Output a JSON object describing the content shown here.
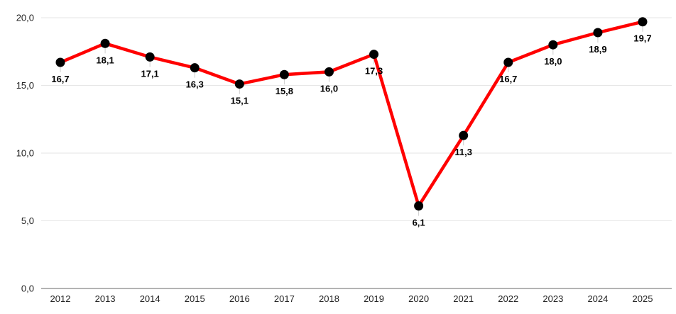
{
  "chart_data": {
    "type": "line",
    "categories": [
      "2012",
      "2013",
      "2014",
      "2015",
      "2016",
      "2017",
      "2018",
      "2019",
      "2020",
      "2021",
      "2022",
      "2023",
      "2024",
      "2025"
    ],
    "series": [
      {
        "name": "series-1",
        "values": [
          16.7,
          18.1,
          17.1,
          16.3,
          15.1,
          15.8,
          16.0,
          17.3,
          6.1,
          11.3,
          16.7,
          18.0,
          18.9,
          19.7
        ],
        "point_labels": [
          "16,7",
          "18,1",
          "17,1",
          "16,3",
          "15,1",
          "15,8",
          "16,0",
          "17,3",
          "6,1",
          "11,3",
          "16,7",
          "18,0",
          "18,9",
          "19,7"
        ]
      }
    ],
    "y_ticks": [
      {
        "value": 0,
        "label": "0,0"
      },
      {
        "value": 5,
        "label": "5,0"
      },
      {
        "value": 10,
        "label": "10,0"
      },
      {
        "value": 15,
        "label": "15,0"
      },
      {
        "value": 20,
        "label": "20,0"
      }
    ],
    "ylim": [
      0,
      20
    ],
    "xlabel": "",
    "ylabel": "",
    "grid": true,
    "legend_position": "none",
    "colors": {
      "line": "#ff0000",
      "marker": "#000000",
      "gridline": "#e6e6e6",
      "axis_line": "#b3b3b3",
      "tick_text": "#222222",
      "point_label_text": "#000000",
      "leader_tick": "#cccccc",
      "background": "#ffffff"
    }
  }
}
